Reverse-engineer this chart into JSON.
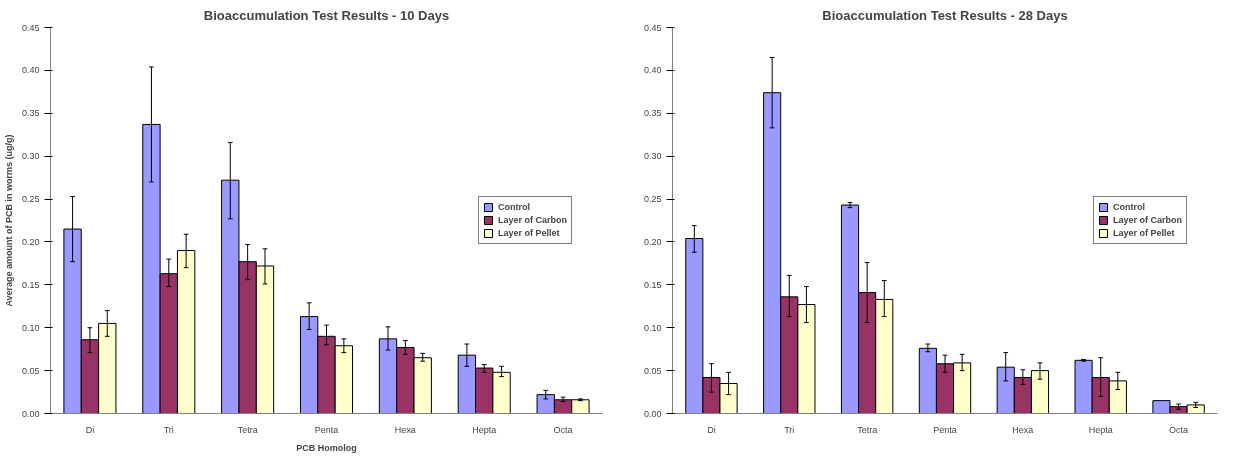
{
  "chart_data": [
    {
      "type": "bar",
      "title": "Bioaccumulation Test Results - 10 Days",
      "xlabel": "PCB Homolog",
      "ylabel": "Average amount of PCB in worms (ug/g)",
      "categories": [
        "Di",
        "Tri",
        "Tetra",
        "Penta",
        "Hexa",
        "Hepta",
        "Octa"
      ],
      "series": [
        {
          "name": "Control",
          "color": "#9999ff",
          "values": [
            0.215,
            0.337,
            0.272,
            0.113,
            0.087,
            0.068,
            0.022
          ],
          "errors": [
            [
              0.177,
              0.253
            ],
            [
              0.27,
              0.404
            ],
            [
              0.227,
              0.316
            ],
            [
              0.098,
              0.129
            ],
            [
              0.074,
              0.101
            ],
            [
              0.055,
              0.081
            ],
            [
              0.017,
              0.027
            ]
          ]
        },
        {
          "name": "Layer of Carbon",
          "color": "#993366",
          "values": [
            0.086,
            0.163,
            0.177,
            0.09,
            0.077,
            0.053,
            0.016
          ],
          "errors": [
            [
              0.071,
              0.1
            ],
            [
              0.148,
              0.18
            ],
            [
              0.156,
              0.197
            ],
            [
              0.08,
              0.103
            ],
            [
              0.069,
              0.085
            ],
            [
              0.048,
              0.057
            ],
            [
              0.014,
              0.019
            ]
          ]
        },
        {
          "name": "Layer of Pellet",
          "color": "#ffffcc",
          "values": [
            0.105,
            0.19,
            0.172,
            0.079,
            0.065,
            0.048,
            0.016
          ],
          "errors": [
            [
              0.09,
              0.12
            ],
            [
              0.17,
              0.209
            ],
            [
              0.151,
              0.192
            ],
            [
              0.071,
              0.087
            ],
            [
              0.061,
              0.07
            ],
            [
              0.043,
              0.055
            ],
            [
              0.015,
              0.017
            ]
          ]
        }
      ],
      "ylim": [
        0,
        0.45
      ],
      "yticks": [
        {
          "value": 0,
          "label": "0.00"
        },
        {
          "value": 0.05,
          "label": "0.05"
        },
        {
          "value": 0.1,
          "label": "0.10"
        },
        {
          "value": 0.15,
          "label": "0.15"
        },
        {
          "value": 0.2,
          "label": "0.20"
        },
        {
          "value": 0.25,
          "label": "0.25"
        },
        {
          "value": 0.3,
          "label": "0.30"
        },
        {
          "value": 0.35,
          "label": "0.35"
        },
        {
          "value": 0.4,
          "label": "0.40"
        },
        {
          "value": 0.45,
          "label": "0.45"
        }
      ],
      "grid": false,
      "legend": "right"
    },
    {
      "type": "bar",
      "title": "Bioaccumulation Test Results - 28 Days",
      "categories": [
        "Di",
        "Tri",
        "Tetra",
        "Penta",
        "Hexa",
        "Hepta",
        "Octa"
      ],
      "series": [
        {
          "name": "Control",
          "color": "#9999ff",
          "values": [
            0.204,
            0.374,
            0.243,
            0.076,
            0.054,
            0.062,
            0.015
          ],
          "errors": [
            [
              0.188,
              0.219
            ],
            [
              0.333,
              0.415
            ],
            [
              0.24,
              0.246
            ],
            [
              0.072,
              0.081
            ],
            [
              0.038,
              0.071
            ],
            [
              0.061,
              0.063
            ],
            null
          ]
        },
        {
          "name": "Layer of Carbon",
          "color": "#993366",
          "values": [
            0.042,
            0.136,
            0.141,
            0.058,
            0.042,
            0.042,
            0.008
          ],
          "errors": [
            [
              0.025,
              0.058
            ],
            [
              0.113,
              0.161
            ],
            [
              0.106,
              0.176
            ],
            [
              0.048,
              0.068
            ],
            [
              0.034,
              0.051
            ],
            [
              0.02,
              0.065
            ],
            [
              0.005,
              0.011
            ]
          ]
        },
        {
          "name": "Layer of Pellet",
          "color": "#ffffcc",
          "values": [
            0.035,
            0.127,
            0.133,
            0.059,
            0.05,
            0.038,
            0.01
          ],
          "errors": [
            [
              0.022,
              0.048
            ],
            [
              0.106,
              0.148
            ],
            [
              0.113,
              0.155
            ],
            [
              0.05,
              0.069
            ],
            [
              0.04,
              0.059
            ],
            [
              0.028,
              0.048
            ],
            [
              0.007,
              0.013
            ]
          ]
        }
      ],
      "ylim": [
        0,
        0.45
      ],
      "yticks": [
        {
          "value": 0,
          "label": "0.00"
        },
        {
          "value": 0.05,
          "label": "0.05"
        },
        {
          "value": 0.1,
          "label": "0.10"
        },
        {
          "value": 0.15,
          "label": "0.15"
        },
        {
          "value": 0.2,
          "label": "0.20"
        },
        {
          "value": 0.25,
          "label": "0.25"
        },
        {
          "value": 0.3,
          "label": "0.30"
        },
        {
          "value": 0.35,
          "label": "0.35"
        },
        {
          "value": 0.4,
          "label": "0.40"
        },
        {
          "value": 0.45,
          "label": "0.45"
        }
      ],
      "grid": false,
      "legend": "right"
    }
  ]
}
